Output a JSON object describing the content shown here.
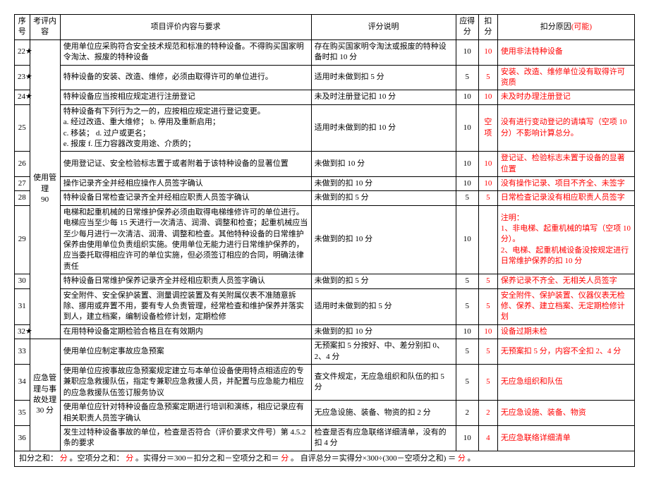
{
  "headers": {
    "seq": "序号",
    "cat": "考评内容",
    "req": "项目评价内容与要求",
    "desc": "评分说明",
    "score": "应得分",
    "deduct": "扣分",
    "reason_prefix": "扣分原因",
    "reason_suffix": "(可能)"
  },
  "category": "使用管理\n90",
  "category2": "应急管理与事故处理\n30 分",
  "rows": [
    {
      "seq": "22★",
      "req": "使用单位应采购符合安全技术规范和标准的特种设备。不得购买国家明令淘汰、报废的特种设备",
      "desc": "存在购买国家明令淘汰或报废的特种设备时扣 10 分",
      "score": "10",
      "deduct": "10",
      "reason": "使用非法特种设备"
    },
    {
      "seq": "23★",
      "req": "特种设备的安装、改造、维修，必须由取得许可的单位进行。",
      "desc": "适用时未做到扣 5 分",
      "score": "5",
      "deduct": "5",
      "reason": "安装、改造、维修单位没有取得许可资质"
    },
    {
      "seq": "24★",
      "req": "特种设备应当按相应规定进行注册登记",
      "desc": "未及时注册登记扣 10 分",
      "score": "10",
      "deduct": "10",
      "reason": "未及时办理注册登记"
    },
    {
      "seq": "25",
      "req": "特种设备有下列行为之一的，应按相应规定进行登记变更。\na. 经过改造、重大维修；    b. 停用及重新启用；\nc. 移装；                d. 过户或更名；\ne. 报废               f. 压力容器改变用途、介质的；",
      "desc": "适用时未做到的扣 10 分",
      "score": "10",
      "deduct": "空项",
      "reason": "没有进行变动登记的请填写（空项 10 分）不影响计算总分。"
    },
    {
      "seq": "26",
      "req": "使用登记证、安全检验标志置于或者附着于该特种设备的显著位置",
      "desc": "未做到扣 10 分",
      "score": "10",
      "deduct": "10",
      "reason": "登记证、检验标志未置于设备的显著位置"
    },
    {
      "seq": "27",
      "req": "操作记录齐全并经相应操作人员签字确认",
      "desc": "未做到的扣 10 分",
      "score": "10",
      "deduct": "10",
      "reason": "没有操作记录、项目不齐全、未签字"
    },
    {
      "seq": "28",
      "req": "特种设备日常检查记录齐全并经相应职责人员签字确认",
      "desc": "未做到的扣 5 分",
      "score": "5",
      "deduct": "5",
      "reason": "日常检查记录没有相应职责人员签字"
    },
    {
      "seq": "29",
      "req": "电梯和起重机械的日常维护保养必须由取得电梯维修许可的单位进行。电梯应当至少每 15 天进行一次清洁、润滑、调整和检查；起重机械应当至少每月进行一次清洁、润滑、调整和检查。其他特种设备的日常维护保养由使用单位负责组织实施。使用单位无能力进行日常维护保养的，应当委托取得相应许可的单位实施，但必须签订相应的合同，明确法律责任",
      "desc": "未做到的扣 10 分",
      "score": "10",
      "deduct": "",
      "reason": "注明：\n1、非电梯、起重机械的填写（空项 10 分）。\n2、电梯、起重机械设备没按规定进行日常维护保养的扣 10 分"
    },
    {
      "seq": "30",
      "req": "特种设备日常维护保养记录齐全并经相应职责人员签字确认",
      "desc": "未做到的扣 5 分",
      "score": "5",
      "deduct": "5",
      "reason": "保养记录不齐全、无相关人员签字"
    },
    {
      "seq": "31",
      "req": "安全附件、安全保护装置、测量调控装置及有关附属仪表不准随意拆除、挪用或弃置不用，要有专人负责管理，经常检查和维护保养并落实到人，建立档案，编制设备检修计划，定期检修",
      "desc": "适用时未做到的扣 5 分",
      "score": "5",
      "deduct": "5",
      "reason": "安全附件、保护装置、仪器仪表无检修、保养、建立档案、无定期检修计划"
    },
    {
      "seq": "32★",
      "req": "在用特种设备定期检验合格且在有效期内",
      "desc": "未做到的扣 10 分",
      "score": "10",
      "deduct": "10",
      "reason": "设备过期未检"
    },
    {
      "seq": "33",
      "req": "使用单位应制定事故应急预案",
      "desc": "无预案扣 5 分按好、中、差分别扣 0、2、4 分",
      "score": "5",
      "deduct": "5",
      "reason": "无预案扣 5 分，内容不全扣 2、4 分"
    },
    {
      "seq": "34",
      "req": "使用单位应按事故应急预案规定建立与本单位设备使用特点相适应的专兼职应急救援队伍，指定专兼职应急救援人员，并配置与应急能力相应的应急救援队伍签订服务协议",
      "desc": "查文件规定，无应急组织和队伍的扣 5 分",
      "score": "5",
      "deduct": "5",
      "reason": "无应急组织和队伍"
    },
    {
      "seq": "35",
      "req": "使用单位应针对特种设备应急预案定期进行培训和演练，相应记录应有相关职责人员签字确认",
      "desc": "无应急设施、装备、物资的扣 2 分",
      "score": "2",
      "deduct": "2",
      "reason": "无应急设施、装备、物资"
    },
    {
      "seq": "36",
      "req": "发生过特种设备事故的单位，检查是否符合（评价要求文件号）第 4.5.2 条的要求",
      "desc": "检查是否有应急联络详细清单，没有的扣 4 分",
      "score": "10",
      "deduct": "4",
      "reason": "无应急联络详细清单"
    }
  ],
  "footer": {
    "t1": "扣分之和：",
    "t2": "分",
    "t3": "。空项分之和：",
    "t4": "分",
    "t5": "。实得分＝300－扣分之和－空项分之和＝",
    "t6": "分",
    "t7": "。   自评总分＝实得分×300÷(300－空项分之和)  ＝",
    "t8": "分",
    "t9": "。"
  }
}
